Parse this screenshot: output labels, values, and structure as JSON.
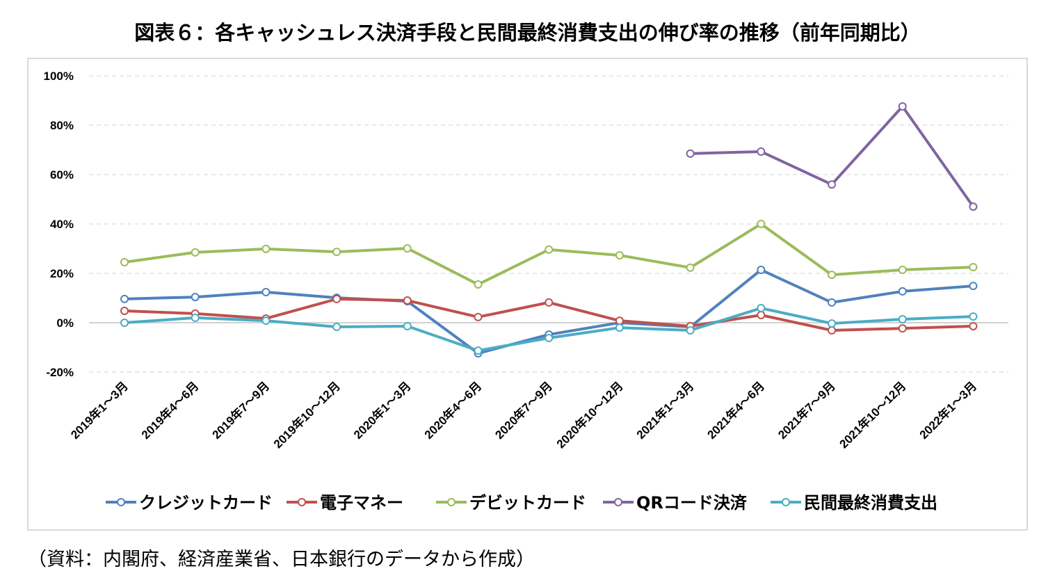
{
  "chart_data": {
    "type": "line",
    "title": "図表６：各キャッシュレス決済手段と民間最終消費支出の伸び率の推移（前年同期比）",
    "source": "（資料：内閣府、経済産業省、日本銀行のデータから作成）",
    "categories": [
      "2019年1～3月",
      "2019年4～6月",
      "2019年7～9月",
      "2019年10～12月",
      "2020年1～3月",
      "2020年4～6月",
      "2020年7～9月",
      "2020年10～12月",
      "2021年1～3月",
      "2021年4～6月",
      "2021年7～9月",
      "2021年10～12月",
      "2022年1～3月"
    ],
    "ylim": [
      -20,
      100
    ],
    "yticks": [
      "-20%",
      "0%",
      "20%",
      "40%",
      "60%",
      "80%",
      "100%"
    ],
    "grid": true,
    "legend": "bottom",
    "series": [
      {
        "name": "クレジットカード",
        "color": "#4f81bd",
        "values": [
          9.6,
          10.4,
          12.4,
          10.1,
          8.7,
          -12.4,
          -4.8,
          0,
          -1.7,
          21.4,
          8.2,
          12.7,
          14.9
        ]
      },
      {
        "name": "電子マネー",
        "color": "#c0504d",
        "values": [
          4.8,
          3.7,
          1.7,
          9.6,
          9.0,
          2.3,
          8.2,
          0.8,
          -1.4,
          3.1,
          -3.1,
          -2.3,
          -1.4
        ]
      },
      {
        "name": "デビットカード",
        "color": "#9bbb59",
        "values": [
          24.5,
          28.5,
          29.9,
          28.7,
          30.1,
          15.5,
          29.6,
          27.3,
          22.3,
          40.0,
          19.4,
          21.4,
          22.5
        ]
      },
      {
        "name": "QRコード決済",
        "color": "#8064a2",
        "values": [
          null,
          null,
          null,
          null,
          null,
          null,
          null,
          null,
          68.5,
          69.3,
          56.0,
          87.6,
          47.0
        ]
      },
      {
        "name": "民間最終消費支出",
        "color": "#4bacc6",
        "values": [
          0,
          2.0,
          0.8,
          -1.7,
          -1.4,
          -11.3,
          -6.2,
          -2.0,
          -3.1,
          5.9,
          -0.3,
          1.4,
          2.5
        ]
      }
    ]
  }
}
